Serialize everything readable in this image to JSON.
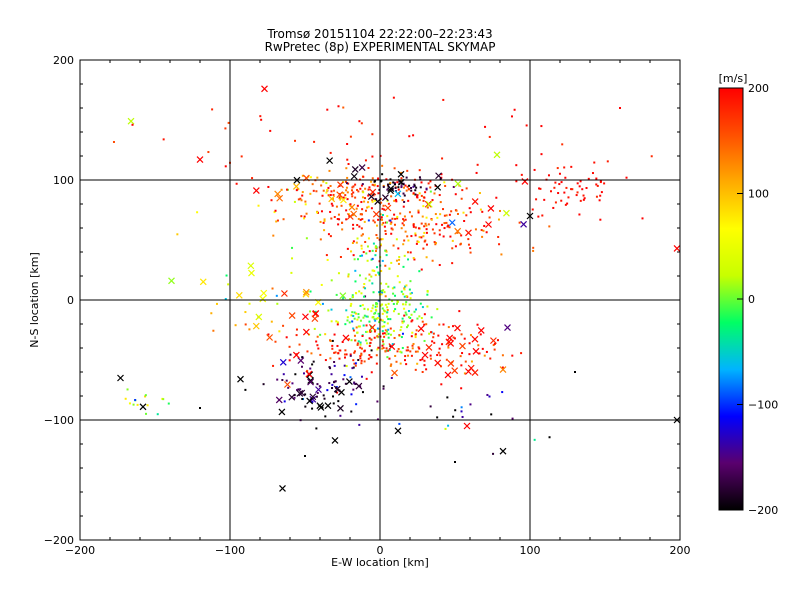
{
  "chart_data": {
    "type": "scatter",
    "title": "Tromsø 20151104 22:22:00–22:23:43",
    "subtitle": "RwPretec (8p) EXPERIMENTAL SKYMAP",
    "xlabel": "E-W location [km]",
    "ylabel": "N-S location [km]",
    "xlim": [
      -200,
      200
    ],
    "ylim": [
      -200,
      200
    ],
    "xticks": [
      -200,
      -100,
      0,
      100,
      200
    ],
    "yticks": [
      -200,
      -100,
      0,
      100,
      200
    ],
    "x_tick_labels": [
      "−200",
      "−100",
      "0",
      "100",
      "200"
    ],
    "y_tick_labels": [
      "−200",
      "−100",
      "0",
      "100",
      "200"
    ],
    "grid": true,
    "colorbar": {
      "label": "[m/s]",
      "range": [
        -200,
        200
      ],
      "ticks": [
        200,
        100,
        0,
        -100,
        -200
      ],
      "tick_labels": [
        "200",
        "100",
        "0",
        "−100",
        "−200"
      ],
      "colors": [
        "#000000",
        "#5a006e",
        "#0000ff",
        "#00b4ff",
        "#00ff64",
        "#c8ff00",
        "#ffff00",
        "#ffaa00",
        "#ff5000",
        "#ff0000"
      ]
    },
    "clusters": [
      {
        "name": "",
        "marker": "dot",
        "center": [
          -5,
          90
        ],
        "spread": [
          30,
          8
        ],
        "count": 120,
        "velocity_mean": 170,
        "velocity_sd": 40,
        "seed": 11
      },
      {
        "name": "",
        "marker": "dot",
        "center": [
          15,
          95
        ],
        "spread": [
          12,
          5
        ],
        "count": 50,
        "velocity_mean": -180,
        "velocity_sd": 20,
        "seed": 12
      },
      {
        "name": "",
        "marker": "dot",
        "center": [
          20,
          60
        ],
        "spread": [
          35,
          15
        ],
        "count": 220,
        "velocity_mean": 170,
        "velocity_sd": 45,
        "seed": 13
      },
      {
        "name": "",
        "marker": "dot",
        "center": [
          0,
          30
        ],
        "spread": [
          12,
          20
        ],
        "count": 80,
        "velocity_mean": 40,
        "velocity_sd": 70,
        "seed": 14
      },
      {
        "name": "",
        "marker": "dot",
        "center": [
          0,
          -10
        ],
        "spread": [
          18,
          14
        ],
        "count": 220,
        "velocity_mean": 5,
        "velocity_sd": 35,
        "seed": 15
      },
      {
        "name": "",
        "marker": "dot",
        "center": [
          10,
          -40
        ],
        "spread": [
          40,
          12
        ],
        "count": 200,
        "velocity_mean": 180,
        "velocity_sd": 30,
        "seed": 16
      },
      {
        "name": "",
        "marker": "dot",
        "center": [
          -40,
          -70
        ],
        "spread": [
          18,
          15
        ],
        "count": 90,
        "velocity_mean": -170,
        "velocity_sd": 35,
        "seed": 17
      },
      {
        "name": "",
        "marker": "dot",
        "center": [
          125,
          95
        ],
        "spread": [
          15,
          12
        ],
        "count": 60,
        "velocity_mean": 195,
        "velocity_sd": 10,
        "seed": 18
      },
      {
        "name": "",
        "marker": "dot",
        "center": [
          -10,
          130
        ],
        "spread": [
          70,
          20
        ],
        "count": 50,
        "velocity_mean": 190,
        "velocity_sd": 20,
        "seed": 19
      },
      {
        "name": "",
        "marker": "dot",
        "center": [
          -75,
          0
        ],
        "spread": [
          25,
          30
        ],
        "count": 30,
        "velocity_mean": 60,
        "velocity_sd": 90,
        "seed": 20
      },
      {
        "name": "",
        "marker": "dot",
        "center": [
          -155,
          -85
        ],
        "spread": [
          10,
          6
        ],
        "count": 15,
        "velocity_mean": 0,
        "velocity_sd": 60,
        "seed": 21
      },
      {
        "name": "",
        "marker": "dot",
        "center": [
          50,
          -100
        ],
        "spread": [
          25,
          15
        ],
        "count": 20,
        "velocity_mean": -150,
        "velocity_sd": 80,
        "seed": 22
      },
      {
        "name": "",
        "marker": "dot",
        "center": [
          -20,
          80
        ],
        "spread": [
          40,
          12
        ],
        "count": 60,
        "velocity_mean": 130,
        "velocity_sd": 60,
        "seed": 23
      },
      {
        "name": "",
        "marker": "cross",
        "center": [
          -40,
          80
        ],
        "spread": [
          25,
          10
        ],
        "count": 14,
        "velocity_mean": 150,
        "velocity_sd": 40,
        "seed": 31
      },
      {
        "name": "",
        "marker": "cross",
        "center": [
          0,
          100
        ],
        "spread": [
          20,
          10
        ],
        "count": 14,
        "velocity_mean": -190,
        "velocity_sd": 15,
        "seed": 32
      },
      {
        "name": "",
        "marker": "cross",
        "center": [
          50,
          -45
        ],
        "spread": [
          18,
          10
        ],
        "count": 18,
        "velocity_mean": 190,
        "velocity_sd": 15,
        "seed": 33
      },
      {
        "name": "",
        "marker": "cross",
        "center": [
          -45,
          -75
        ],
        "spread": [
          18,
          12
        ],
        "count": 22,
        "velocity_mean": -185,
        "velocity_sd": 25,
        "seed": 34
      },
      {
        "name": "",
        "marker": "cross",
        "center": [
          -70,
          5
        ],
        "spread": [
          30,
          15
        ],
        "count": 14,
        "velocity_mean": 60,
        "velocity_sd": 90,
        "seed": 35
      },
      {
        "name": "",
        "marker": "cross",
        "center": [
          60,
          70
        ],
        "spread": [
          30,
          15
        ],
        "count": 14,
        "velocity_mean": 100,
        "velocity_sd": 120,
        "seed": 36
      },
      {
        "name": "",
        "marker": "cross",
        "center": [
          -10,
          -40
        ],
        "spread": [
          30,
          15
        ],
        "count": 14,
        "velocity_mean": 180,
        "velocity_sd": 30,
        "seed": 37
      }
    ],
    "isolated_points": [
      {
        "x": -77,
        "y": 176,
        "v": 200,
        "marker": "cross"
      },
      {
        "x": -166,
        "y": 149,
        "v": 20,
        "marker": "cross"
      },
      {
        "x": -139,
        "y": 16,
        "v": 10,
        "marker": "cross"
      },
      {
        "x": -173,
        "y": -65,
        "v": -200,
        "marker": "cross"
      },
      {
        "x": -158,
        "y": -89,
        "v": -200,
        "marker": "cross"
      },
      {
        "x": -65,
        "y": -157,
        "v": -200,
        "marker": "cross"
      },
      {
        "x": -30,
        "y": -117,
        "v": -200,
        "marker": "cross"
      },
      {
        "x": -93,
        "y": -66,
        "v": -200,
        "marker": "cross"
      },
      {
        "x": 198,
        "y": 43,
        "v": 200,
        "marker": "cross"
      },
      {
        "x": 198,
        "y": -100,
        "v": -200,
        "marker": "cross"
      },
      {
        "x": 78,
        "y": 121,
        "v": 20,
        "marker": "cross"
      },
      {
        "x": 100,
        "y": 70,
        "v": -200,
        "marker": "cross"
      },
      {
        "x": 85,
        "y": -23,
        "v": -150,
        "marker": "cross"
      },
      {
        "x": 82,
        "y": -58,
        "v": 130,
        "marker": "cross"
      },
      {
        "x": 58,
        "y": -105,
        "v": 200,
        "marker": "cross"
      },
      {
        "x": 82,
        "y": -126,
        "v": -200,
        "marker": "cross"
      },
      {
        "x": 12,
        "y": -109,
        "v": -200,
        "marker": "cross"
      },
      {
        "x": -120,
        "y": 117,
        "v": 200,
        "marker": "cross"
      },
      {
        "x": 160,
        "y": 160,
        "v": 200,
        "marker": "dot"
      },
      {
        "x": -50,
        "y": -130,
        "v": -200,
        "marker": "dot"
      },
      {
        "x": 50,
        "y": -135,
        "v": -200,
        "marker": "dot"
      },
      {
        "x": -120,
        "y": -90,
        "v": -200,
        "marker": "dot"
      },
      {
        "x": 130,
        "y": -60,
        "v": -200,
        "marker": "dot"
      },
      {
        "x": 175,
        "y": 68,
        "v": 200,
        "marker": "dot"
      },
      {
        "x": 88,
        "y": 153,
        "v": 200,
        "marker": "dot"
      },
      {
        "x": -165,
        "y": 146,
        "v": 200,
        "marker": "dot"
      }
    ]
  }
}
